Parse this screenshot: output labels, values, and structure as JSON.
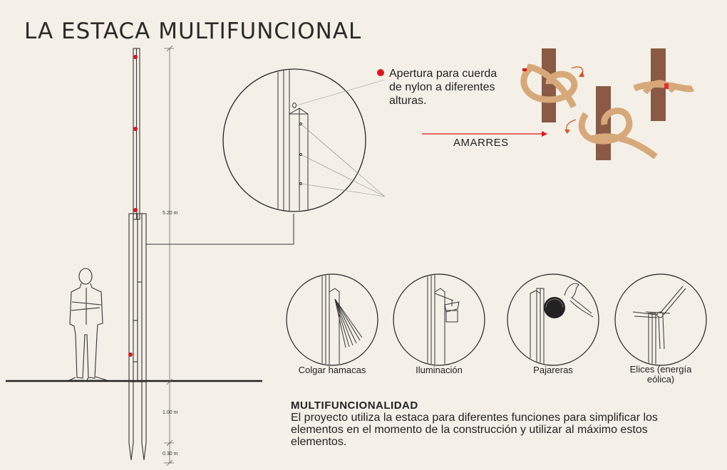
{
  "title": "LA ESTACA MULTIFUNCIONAL",
  "callout": {
    "apertura": "Apertura para cuerda de nylon a diferentes alturas."
  },
  "amarres_label": "AMARRES",
  "dimensions": {
    "total": "5.20 m",
    "buried": "1.00 m",
    "tip": "0.30 m"
  },
  "functions": [
    {
      "label": "Colgar hamacas"
    },
    {
      "label": "Iluminación"
    },
    {
      "label": "Pajareras"
    },
    {
      "label": "Elices (energía eólica)"
    }
  ],
  "multifuncionalidad": {
    "heading": "MULTIFUNCIONALIDAD",
    "body": "El proyecto utiliza la estaca para diferentes funciones para simplificar los elementos en el momento de la construcción y utilizar al máximo estos elementos."
  },
  "colors": {
    "background": "#f4f0e8",
    "accent_red": "#e0141b",
    "wood": "#8a5a44",
    "rope": "#d7a97a"
  }
}
